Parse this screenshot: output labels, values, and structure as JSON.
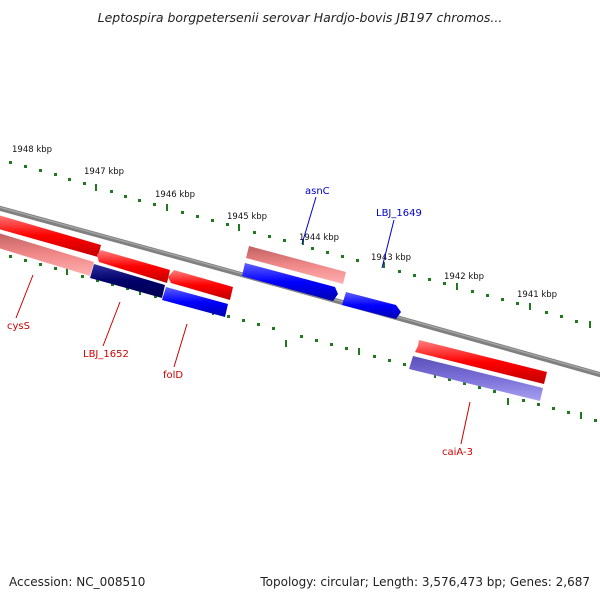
{
  "title": "Leptospira borgpetersenii serovar Hardjo-bovis JB197 chromos...",
  "footer": {
    "accession": "Accession: NC_008510",
    "summary": "Topology: circular; Length: 3,576,473 bp; Genes: 2,687"
  },
  "colors": {
    "tick": "#1f7a1f",
    "backbone": "#808080",
    "label_red": "#cc0000",
    "label_blue": "#0000cc"
  },
  "kbp_labels": [
    "1948 kbp",
    "1947 kbp",
    "1946 kbp",
    "1945 kbp",
    "1944 kbp",
    "1943 kbp",
    "1942 kbp",
    "1941 kbp"
  ],
  "gene_labels": {
    "asnC": "asnC",
    "LBJ_1649": "LBJ_1649",
    "cysS": "cysS",
    "LBJ_1652": "LBJ_1652",
    "folD": "folD",
    "caiA-3": "caiA-3"
  }
}
